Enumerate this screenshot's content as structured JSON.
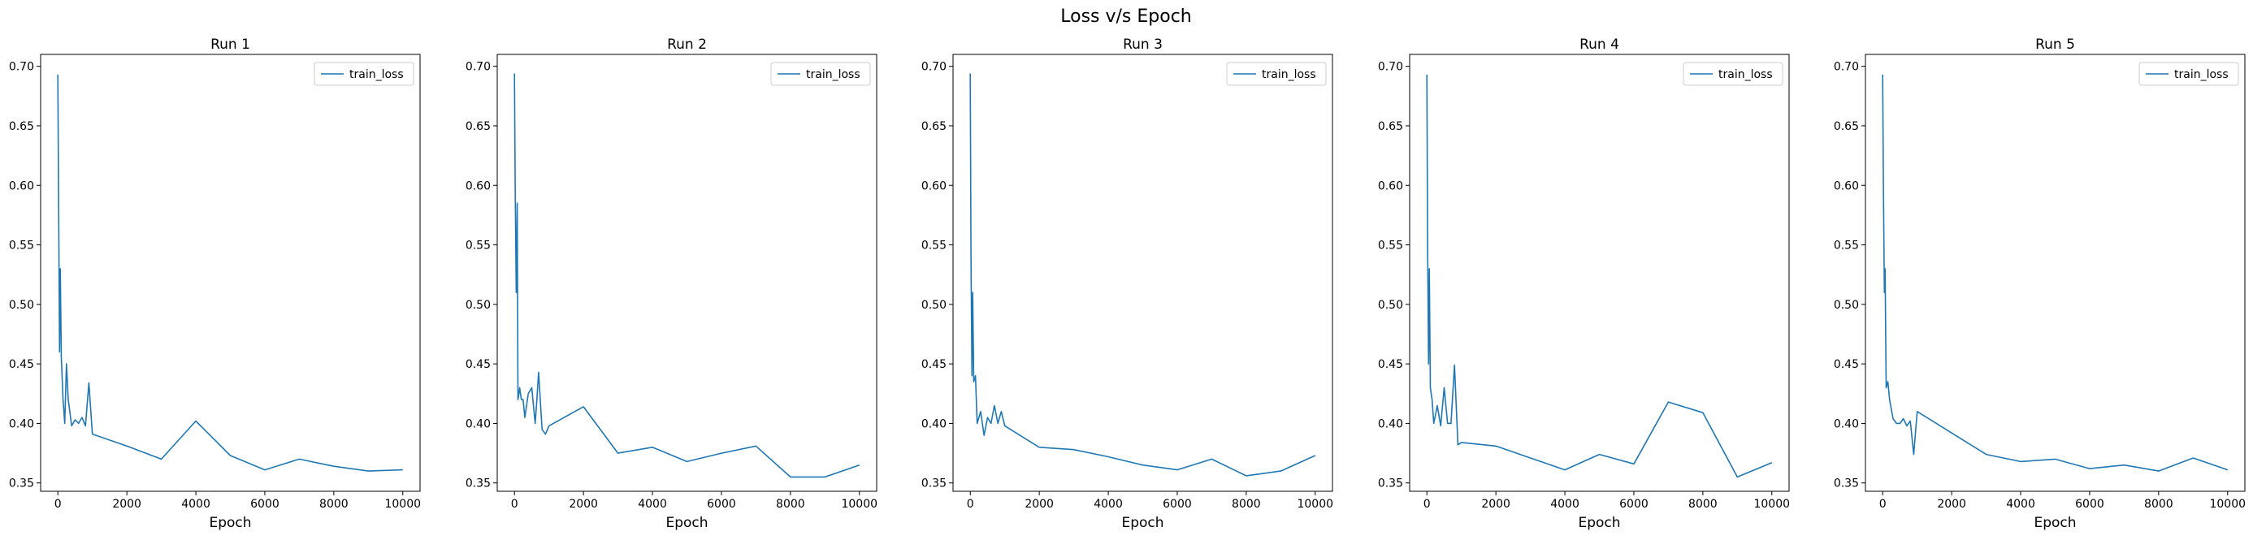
{
  "figure_title": "Loss v/s Epoch",
  "chart_data": [
    {
      "type": "line",
      "title": "Run 1",
      "xlabel": "Epoch",
      "ylabel": "",
      "xlim": [
        -500,
        10500
      ],
      "ylim": [
        0.343,
        0.71
      ],
      "xticks": [
        0,
        2000,
        4000,
        6000,
        8000,
        10000
      ],
      "yticks": [
        0.35,
        0.4,
        0.45,
        0.5,
        0.55,
        0.6,
        0.65,
        0.7
      ],
      "legend": "top-right",
      "grid": false,
      "series": [
        {
          "name": "train_loss",
          "color": "#1f77b4",
          "x": [
            0,
            20,
            50,
            70,
            100,
            150,
            200,
            250,
            300,
            400,
            500,
            600,
            700,
            800,
            900,
            1000,
            2000,
            3000,
            4000,
            5000,
            6000,
            7000,
            8000,
            9000,
            10000
          ],
          "y": [
            0.693,
            0.59,
            0.46,
            0.53,
            0.455,
            0.42,
            0.4,
            0.45,
            0.42,
            0.398,
            0.403,
            0.4,
            0.405,
            0.398,
            0.434,
            0.391,
            0.381,
            0.37,
            0.402,
            0.373,
            0.361,
            0.37,
            0.364,
            0.36,
            0.361
          ]
        }
      ]
    },
    {
      "type": "line",
      "title": "Run 2",
      "xlabel": "Epoch",
      "ylabel": "",
      "xlim": [
        -500,
        10500
      ],
      "ylim": [
        0.343,
        0.71
      ],
      "xticks": [
        0,
        2000,
        4000,
        6000,
        8000,
        10000
      ],
      "yticks": [
        0.35,
        0.4,
        0.45,
        0.5,
        0.55,
        0.6,
        0.65,
        0.7
      ],
      "legend": "top-right",
      "grid": false,
      "series": [
        {
          "name": "train_loss",
          "color": "#1f77b4",
          "x": [
            0,
            20,
            50,
            80,
            100,
            130,
            150,
            200,
            250,
            300,
            400,
            500,
            600,
            650,
            700,
            800,
            900,
            1000,
            2000,
            3000,
            4000,
            5000,
            6000,
            7000,
            8000,
            9000,
            10000
          ],
          "y": [
            0.694,
            0.6,
            0.51,
            0.585,
            0.42,
            0.425,
            0.43,
            0.42,
            0.42,
            0.405,
            0.425,
            0.43,
            0.4,
            0.42,
            0.443,
            0.395,
            0.391,
            0.398,
            0.414,
            0.375,
            0.38,
            0.368,
            0.375,
            0.381,
            0.355,
            0.355,
            0.365
          ]
        }
      ]
    },
    {
      "type": "line",
      "title": "Run 3",
      "xlabel": "Epoch",
      "ylabel": "",
      "xlim": [
        -500,
        10500
      ],
      "ylim": [
        0.343,
        0.71
      ],
      "xticks": [
        0,
        2000,
        4000,
        6000,
        8000,
        10000
      ],
      "yticks": [
        0.35,
        0.4,
        0.45,
        0.5,
        0.55,
        0.6,
        0.65,
        0.7
      ],
      "legend": "top-right",
      "grid": false,
      "series": [
        {
          "name": "train_loss",
          "color": "#1f77b4",
          "x": [
            0,
            20,
            50,
            70,
            100,
            150,
            200,
            300,
            400,
            500,
            600,
            700,
            800,
            900,
            1000,
            2000,
            3000,
            4000,
            5000,
            6000,
            7000,
            8000,
            9000,
            10000
          ],
          "y": [
            0.694,
            0.54,
            0.44,
            0.51,
            0.435,
            0.44,
            0.4,
            0.41,
            0.39,
            0.405,
            0.4,
            0.415,
            0.4,
            0.41,
            0.398,
            0.38,
            0.378,
            0.372,
            0.365,
            0.361,
            0.37,
            0.356,
            0.36,
            0.373
          ]
        }
      ]
    },
    {
      "type": "line",
      "title": "Run 4",
      "xlabel": "Epoch",
      "ylabel": "",
      "xlim": [
        -500,
        10500
      ],
      "ylim": [
        0.343,
        0.71
      ],
      "xticks": [
        0,
        2000,
        4000,
        6000,
        8000,
        10000
      ],
      "yticks": [
        0.35,
        0.4,
        0.45,
        0.5,
        0.55,
        0.6,
        0.65,
        0.7
      ],
      "legend": "top-right",
      "grid": false,
      "series": [
        {
          "name": "train_loss",
          "color": "#1f77b4",
          "x": [
            0,
            20,
            50,
            70,
            100,
            150,
            200,
            300,
            400,
            500,
            600,
            700,
            800,
            900,
            1000,
            2000,
            3000,
            4000,
            5000,
            6000,
            7000,
            8000,
            9000,
            10000
          ],
          "y": [
            0.693,
            0.55,
            0.45,
            0.53,
            0.43,
            0.42,
            0.4,
            0.415,
            0.398,
            0.43,
            0.4,
            0.4,
            0.449,
            0.382,
            0.384,
            0.381,
            0.371,
            0.361,
            0.374,
            0.366,
            0.418,
            0.409,
            0.355,
            0.367
          ]
        }
      ]
    },
    {
      "type": "line",
      "title": "Run 5",
      "xlabel": "Epoch",
      "ylabel": "",
      "xlim": [
        -500,
        10500
      ],
      "ylim": [
        0.343,
        0.71
      ],
      "xticks": [
        0,
        2000,
        4000,
        6000,
        8000,
        10000
      ],
      "yticks": [
        0.35,
        0.4,
        0.45,
        0.5,
        0.55,
        0.6,
        0.65,
        0.7
      ],
      "legend": "top-right",
      "grid": false,
      "series": [
        {
          "name": "train_loss",
          "color": "#1f77b4",
          "x": [
            0,
            20,
            50,
            70,
            100,
            150,
            200,
            300,
            400,
            500,
            600,
            700,
            800,
            900,
            1000,
            2000,
            3000,
            4000,
            5000,
            6000,
            7000,
            8000,
            9000,
            10000
          ],
          "y": [
            0.693,
            0.6,
            0.51,
            0.53,
            0.43,
            0.435,
            0.42,
            0.404,
            0.4,
            0.4,
            0.404,
            0.398,
            0.402,
            0.374,
            0.41,
            0.392,
            0.374,
            0.368,
            0.37,
            0.362,
            0.365,
            0.36,
            0.371,
            0.361
          ]
        }
      ]
    }
  ]
}
